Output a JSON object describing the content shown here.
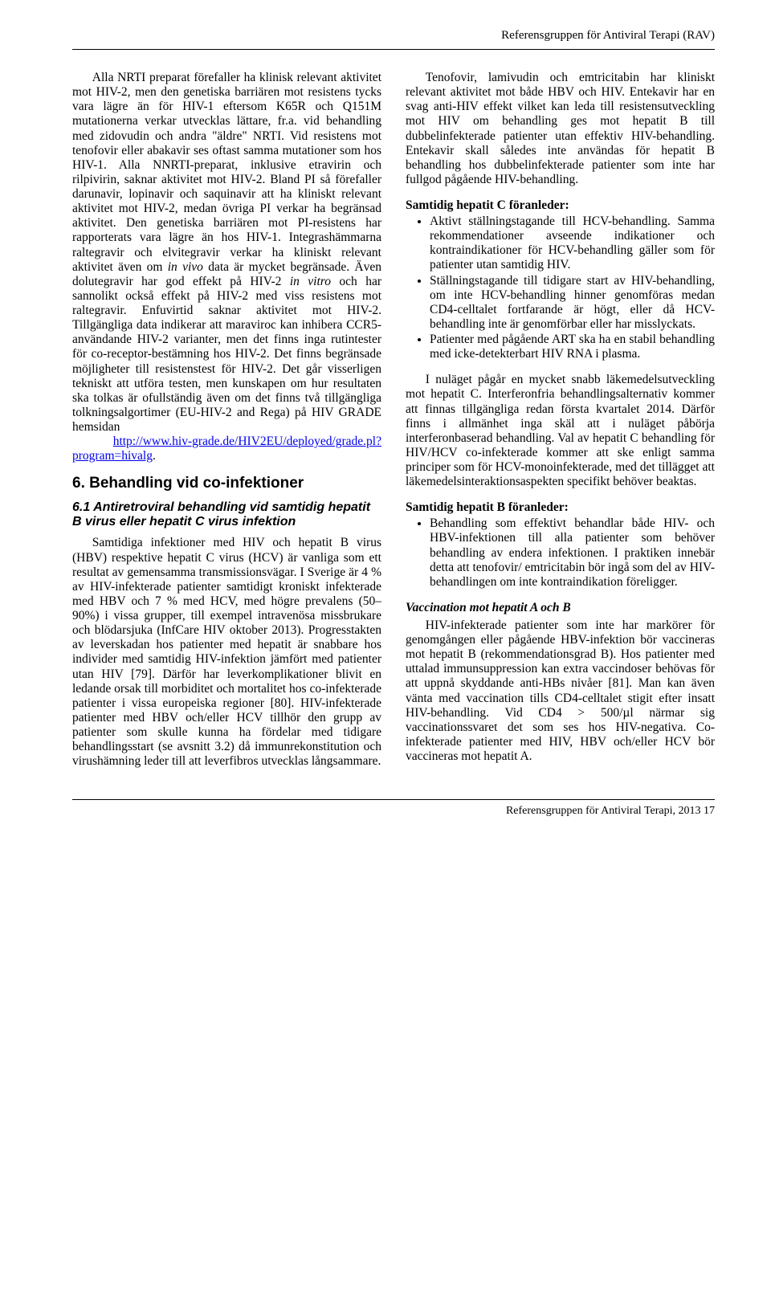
{
  "header": {
    "title": "Referensgruppen för Antiviral Terapi (RAV)"
  },
  "left": {
    "p1_a": "Alla NRTI preparat förefaller ha klinisk rele­vant aktivitet mot HIV-2, men den genetiska barriären mot resistens tycks vara lägre än för HIV-1 eftersom K65R och Q151M mutationerna verkar utvecklas lättare, fr.a. vid behandling med zidovudin och andra \"äldre\" NRTI. Vid resistens mot tenofovir eller abakavir ses oftast samma mutationer som hos HIV-1. Alla NNRTI-preparat, inklusive etravirin och rilpivirin, saknar aktivitet mot HIV-2. Bland PI så förefaller darunavir, lopinavir och saquinavir att ha kliniskt relevant aktivitet mot HIV-2, medan övriga PI verkar ha begränsad aktivitet. Den genetiska barriären mot PI-resistens har rapporterats vara lägre än hos HIV-1. Integrashämmarna raltegravir och elvitegravir verkar ha kliniskt relevant aktivitet även om ",
    "p1_invivo": "in vivo",
    "p1_b": " data är mycket begränsade. Även dolutegravir har god effekt på HIV-2 ",
    "p1_invitro": "in vitro",
    "p1_c": " och har sannolikt också effekt på HIV-2 med viss resistens mot raltegravir. Enfuvirtid saknar aktivitet mot HIV-2. Tillgängliga data indikerar att maraviroc kan inhibera CCR5-användande HIV-2 varianter, men det finns inga rutintester för co-receptor-bestämning hos HIV-2. Det finns begränsade möjligheter till resistenstest för HIV-2. Det går visserligen tekniskt att utföra testen, men kunskapen om hur resultaten ska tolkas är ofullständig även om det finns två tillgängliga tolkningsalgortimer (EU-HIV-2 and Rega) på HIV GRADE hemsidan",
    "link1": "http://www.hiv-grade.de/HIV2EU/deployed/grade.pl?program=hivalg",
    "h2": "6. Behandling vid co-infektioner",
    "h3": "6.1 Antiretroviral behandling vid samtidig hepatit B virus eller hepatit C virus infektion",
    "p2": "Samtidiga infektioner med HIV och hepatit B virus (HBV) respektive hepatit C virus (HCV) är vanliga som ett resultat av gemensamma transmissionsvägar. I Sverige är 4 % av HIV-infekterade patienter samtidigt kroniskt infekterade med HBV och 7 % med HCV, med högre prevalens (50–90%) i vissa grupper, till exempel intravenösa missbrukare och blödarsjuka (InfCare HIV oktober 2013). Progresstakten av leverskadan hos patienter med hepatit är snabbare hos individer med samtidig HIV-infektion jämfört med patienter utan HIV [79]. Därför har leverkomplikationer blivit en ledande or­sak till morbiditet och mortalitet hos co-infekterade patienter i vissa europeiska regioner [80]. HIV-infekterade patienter med HBV och/eller HCV tillhör den grupp av patienter som skulle kunna ha fördelar med tidigare behandlingsstart (se avsnitt 3.2) då immunrekonstitution och virushämning leder till att leverfibros utvecklas långsammare."
  },
  "right": {
    "p1": "Tenofovir, lamivudin och emtricitabin har kliniskt relevant aktivitet mot både HBV och HIV. Entekavir har en svag anti-HIV effekt vilket kan leda till resistensutveckling mot HIV om behandling ges mot hepatit B till dubbelinfekterade patienter utan effektiv HIV-behandling. Entekavir skall således inte användas för hepatit B behandling hos dubbelinfekterade patienter som inte har fullgod pågående HIV-behandling.",
    "hC_title": "Samtidig hepatit C föranleder:",
    "hC_items": [
      "Aktivt ställningstagande till HCV-behandling. Samma rekommendationer avseende indikationer och kontraindikationer för HCV-behandling gäller som för patienter utan samtidig HIV.",
      "Ställningstagande till tidigare start av HIV-behandling, om inte HCV-behandling hinner genomföras medan CD4-celltalet fortfarande är högt, eller då HCV-behandling inte är genomförbar eller har misslyckats.",
      "Patienter med pågående ART ska ha en stabil behandling med icke-detekterbart HIV RNA i plasma."
    ],
    "p2": "I nuläget pågår en mycket snabb läkemedels­utveckling mot hepatit C. Interferonfria behandlingsalternativ kommer att finnas tillgängliga redan första kvartalet 2014. Därför finns i allmänhet inga skäl att i nuläget påbörja interferonbaserad behandling. Val av hepatit C behandling för HIV/HCV co-infekterade kommer att ske enligt samma principer som för HCV-monoinfekterade, med det tillägget att läkemedels­interaktionsaspekten specifikt behöver beaktas.",
    "hB_title": "Samtidig hepatit B föranleder:",
    "hB_items": [
      "Behandling som effektivt behandlar både HIV- och HBV-infektionen till alla patienter som behöver behandling av endera infektionen. I praktiken innebär detta att tenofovir/ emtricitabin bör ingå som del av HIV-behandlingen om inte kontraindikation föreligger."
    ],
    "vacc_title": "Vaccination mot hepatit A och B",
    "p3": "HIV-infekterade patienter som inte har markörer för genomgången eller pågående HBV-infektion bör vaccineras mot hepatit B (rekommen­dationsgrad B). Hos patienter med uttalad immun­suppression kan extra vaccindoser behövas för att uppnå skyddande anti-HBs nivåer [81]. Man kan även vänta med vaccination tills CD4-celltalet stigit efter insatt HIV-behandling. Vid CD4 > 500/µl närmar sig vaccinationssvaret det som ses hos HIV-negativa. Co-infekterade patienter med HIV, HBV och/eller HCV bör vaccineras mot hepatit A."
  },
  "footer": {
    "text": "Referensgruppen för Antiviral Terapi, 2013   17"
  }
}
